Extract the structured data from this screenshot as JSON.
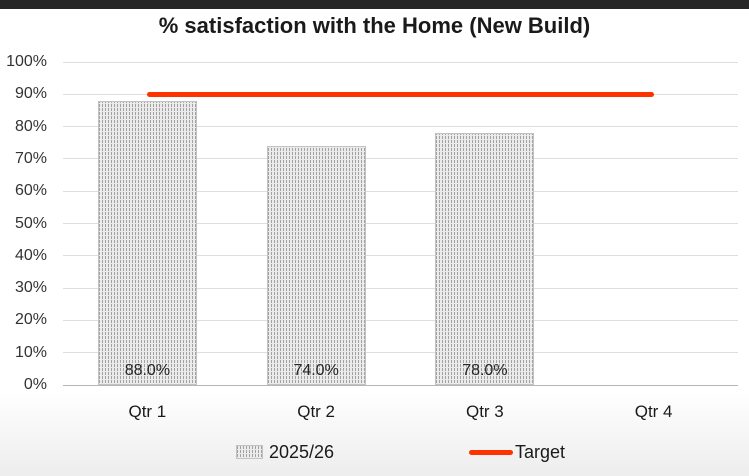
{
  "window": {
    "top_bar_color": "#262626"
  },
  "chart_data": {
    "type": "bar",
    "title": "% satisfaction with the Home (New Build)",
    "categories": [
      "Qtr 1",
      "Qtr 2",
      "Qtr 3",
      "Qtr 4"
    ],
    "series": [
      {
        "name": "2025/26",
        "type": "bar",
        "values": [
          88.0,
          74.0,
          78.0,
          null
        ],
        "data_labels": [
          "88.0%",
          "74.0%",
          "78.0%",
          ""
        ]
      },
      {
        "name": "Target",
        "type": "line",
        "values": [
          90,
          90,
          90,
          90
        ],
        "color": "#ff3300"
      }
    ],
    "ylim": [
      0,
      100
    ],
    "ytick_step": 10,
    "ytick_labels": [
      "0%",
      "10%",
      "20%",
      "30%",
      "40%",
      "50%",
      "60%",
      "70%",
      "80%",
      "90%",
      "100%"
    ],
    "grid": true,
    "legend_position": "bottom",
    "colors": {
      "bar_fill_base": "#ebebeb",
      "bar_pattern": "#a2a2a2",
      "bar_border": "#c2c2c2",
      "target": "#ff3300",
      "gridline": "#dedede",
      "axis_line": "#b5b5b5"
    }
  }
}
